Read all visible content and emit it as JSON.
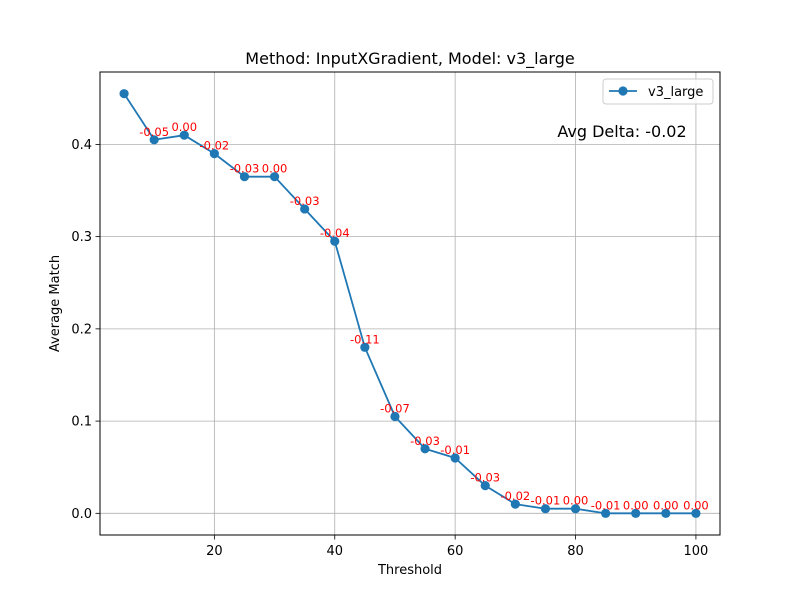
{
  "chart_data": {
    "type": "line",
    "title": "Method: InputXGradient, Model: v3_large",
    "xlabel": "Threshold",
    "ylabel": "Average Match",
    "xlim": [
      1,
      104
    ],
    "ylim": [
      -0.0235,
      0.4785
    ],
    "xticks": [
      20,
      40,
      60,
      80,
      100
    ],
    "yticks": [
      0.0,
      0.1,
      0.2,
      0.3,
      0.4
    ],
    "xtick_labels": [
      "20",
      "40",
      "60",
      "80",
      "100"
    ],
    "ytick_labels": [
      "0.0",
      "0.1",
      "0.2",
      "0.3",
      "0.4"
    ],
    "grid": true,
    "legend": {
      "position": "top-right"
    },
    "series": [
      {
        "name": "v3_large",
        "color": "#1f77b4",
        "x": [
          5,
          10,
          15,
          20,
          25,
          30,
          35,
          40,
          45,
          50,
          55,
          60,
          65,
          70,
          75,
          80,
          85,
          90,
          95,
          100
        ],
        "values": [
          0.455,
          0.405,
          0.41,
          0.39,
          0.365,
          0.365,
          0.33,
          0.295,
          0.18,
          0.105,
          0.07,
          0.06,
          0.03,
          0.01,
          0.005,
          0.005,
          0.0,
          0.0,
          0.0,
          0.0
        ]
      }
    ],
    "annotations": [
      {
        "x": 10,
        "y": 0.405,
        "text": "-0.05"
      },
      {
        "x": 15,
        "y": 0.41,
        "text": "0.00"
      },
      {
        "x": 20,
        "y": 0.39,
        "text": "-0.02"
      },
      {
        "x": 25,
        "y": 0.365,
        "text": "-0.03"
      },
      {
        "x": 30,
        "y": 0.365,
        "text": "0.00"
      },
      {
        "x": 35,
        "y": 0.33,
        "text": "-0.03"
      },
      {
        "x": 40,
        "y": 0.295,
        "text": "-0.04"
      },
      {
        "x": 45,
        "y": 0.18,
        "text": "-0.11"
      },
      {
        "x": 50,
        "y": 0.105,
        "text": "-0.07"
      },
      {
        "x": 55,
        "y": 0.07,
        "text": "-0.03"
      },
      {
        "x": 60,
        "y": 0.06,
        "text": "-0.01"
      },
      {
        "x": 65,
        "y": 0.03,
        "text": "-0.03"
      },
      {
        "x": 70,
        "y": 0.01,
        "text": "-0.02"
      },
      {
        "x": 75,
        "y": 0.005,
        "text": "-0.01"
      },
      {
        "x": 80,
        "y": 0.005,
        "text": "0.00"
      },
      {
        "x": 85,
        "y": 0.0,
        "text": "-0.01"
      },
      {
        "x": 90,
        "y": 0.0,
        "text": "0.00"
      },
      {
        "x": 95,
        "y": 0.0,
        "text": "0.00"
      },
      {
        "x": 100,
        "y": 0.0,
        "text": "0.00"
      }
    ],
    "annotation_color": "#ff0000",
    "summary_text": "Avg Delta: -0.02"
  }
}
